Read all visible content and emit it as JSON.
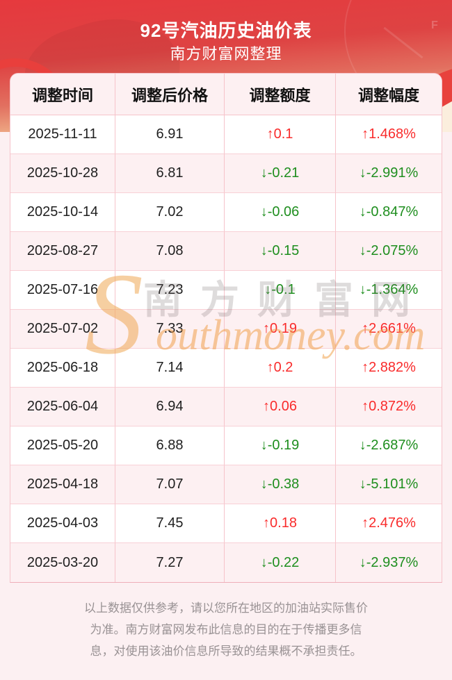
{
  "banner": {
    "title": "92号汽油历史油价表",
    "subtitle": "南方财富网整理",
    "gauge_label": "F"
  },
  "table": {
    "headers": [
      "调整时间",
      "调整后价格",
      "调整额度",
      "调整幅度"
    ],
    "rows": [
      {
        "date": "2025-11-11",
        "price": "6.91",
        "change": "↑0.1",
        "percent": "↑1.468%",
        "direction": "up"
      },
      {
        "date": "2025-10-28",
        "price": "6.81",
        "change": "↓-0.21",
        "percent": "↓-2.991%",
        "direction": "down"
      },
      {
        "date": "2025-10-14",
        "price": "7.02",
        "change": "↓-0.06",
        "percent": "↓-0.847%",
        "direction": "down"
      },
      {
        "date": "2025-08-27",
        "price": "7.08",
        "change": "↓-0.15",
        "percent": "↓-2.075%",
        "direction": "down"
      },
      {
        "date": "2025-07-16",
        "price": "7.23",
        "change": "↓-0.1",
        "percent": "↓-1.364%",
        "direction": "down"
      },
      {
        "date": "2025-07-02",
        "price": "7.33",
        "change": "↑0.19",
        "percent": "↑2.661%",
        "direction": "up"
      },
      {
        "date": "2025-06-18",
        "price": "7.14",
        "change": "↑0.2",
        "percent": "↑2.882%",
        "direction": "up"
      },
      {
        "date": "2025-06-04",
        "price": "6.94",
        "change": "↑0.06",
        "percent": "↑0.872%",
        "direction": "up"
      },
      {
        "date": "2025-05-20",
        "price": "6.88",
        "change": "↓-0.19",
        "percent": "↓-2.687%",
        "direction": "down"
      },
      {
        "date": "2025-04-18",
        "price": "7.07",
        "change": "↓-0.38",
        "percent": "↓-5.101%",
        "direction": "down"
      },
      {
        "date": "2025-04-03",
        "price": "7.45",
        "change": "↑0.18",
        "percent": "↑2.476%",
        "direction": "up"
      },
      {
        "date": "2025-03-20",
        "price": "7.27",
        "change": "↓-0.22",
        "percent": "↓-2.937%",
        "direction": "down"
      }
    ]
  },
  "watermark": {
    "big_s": "S",
    "cn": "南方财富网",
    "en": "outhmoney.com"
  },
  "footer": {
    "lines": [
      "以上数据仅供参考，请以您所在地区的加油站实际售价",
      "为准。南方财富网发布此信息的目的在于传播更多信",
      "息，对使用该油价信息所导致的结果概不承担责任。"
    ]
  },
  "colors": {
    "up_red": "#f92b2b",
    "down_green": "#1e8e1e",
    "banner_red": "#e6393e",
    "row_pink": "#fdf0f2",
    "border_pink": "#f6c3ca"
  }
}
